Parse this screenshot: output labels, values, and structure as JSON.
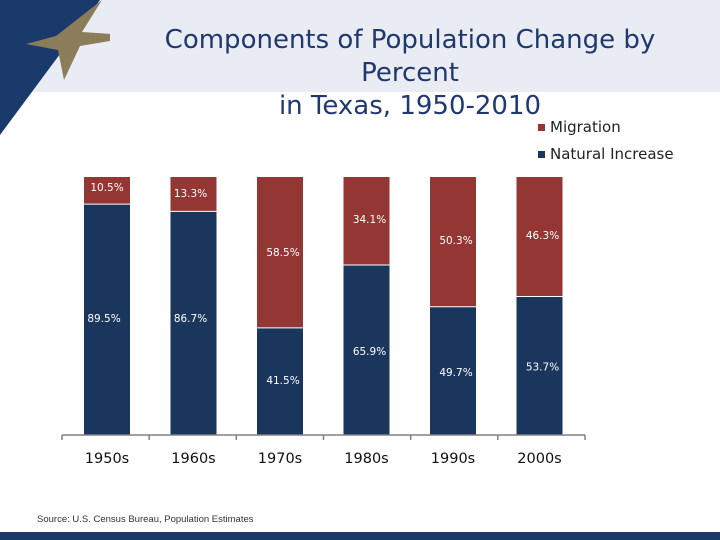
{
  "slide": {
    "title_line1": "Components of Population Change by Percent",
    "title_line2": "in Texas, 1950-2010",
    "source": "Source: U.S. Census Bureau, Population Estimates"
  },
  "colors": {
    "natural_increase": "#1b365d",
    "migration": "#943634",
    "title": "#1f3870",
    "header_band": "#e9ecf3",
    "star": "#8b7d5a",
    "corner": "#1a3a6b"
  },
  "icons": {
    "corner_logo": "star-icon"
  },
  "chart_data": {
    "type": "bar",
    "stacked": true,
    "percent_stacked": true,
    "categories": [
      "1950s",
      "1960s",
      "1970s",
      "1980s",
      "1990s",
      "2000s"
    ],
    "series": [
      {
        "name": "Natural Increase",
        "values": [
          89.5,
          86.7,
          41.5,
          65.9,
          49.7,
          53.7
        ],
        "labels": [
          "89.5%",
          "86.7%",
          "41.5%",
          "65.9%",
          "49.7%",
          "53.7%"
        ],
        "color": "#1b365d"
      },
      {
        "name": "Migration",
        "values": [
          10.5,
          13.3,
          58.5,
          34.1,
          50.3,
          46.3
        ],
        "labels": [
          "10.5%",
          "13.3%",
          "58.5%",
          "34.1%",
          "50.3%",
          "46.3%"
        ],
        "color": "#943634"
      }
    ],
    "ylim": [
      0,
      100
    ],
    "grid": false,
    "legend_position": "top-right"
  }
}
